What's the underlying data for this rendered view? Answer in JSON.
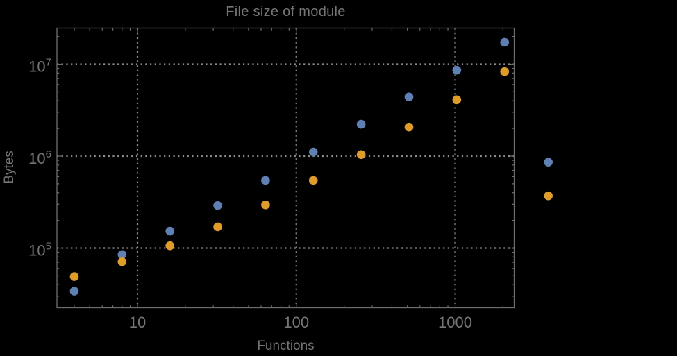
{
  "title": "File size of module",
  "colors": {
    "background": "#000000",
    "frame": "#6e6e6e",
    "grid": "#8c8c8c",
    "text": "#757575",
    "series_blue": "#5E81B5",
    "series_orange": "#E19C24"
  },
  "axes": {
    "x": {
      "label": "Functions",
      "scale": "log",
      "major_ticks": [
        10,
        100,
        1000
      ],
      "major_tick_labels": [
        "10",
        "100",
        "1000"
      ]
    },
    "y": {
      "label": "Bytes",
      "scale": "log",
      "major_ticks": [
        100000,
        1000000,
        10000000
      ],
      "major_tick_labels": [
        {
          "base": "10",
          "exp": "5"
        },
        {
          "base": "10",
          "exp": "6"
        },
        {
          "base": "10",
          "exp": "7"
        }
      ]
    }
  },
  "chart_data": {
    "type": "scatter",
    "title": "File size of module",
    "xlabel": "Functions",
    "ylabel": "Bytes",
    "xscale": "log",
    "yscale": "log",
    "xlim": [
      3.1,
      2355
    ],
    "ylim": [
      22400,
      24700000
    ],
    "grid": "dotted lines at decades, framed plot with inward log ticks",
    "legend": "none",
    "marker_radius_px": 6.3,
    "note_visible_fact": "last pair of points is drawn outside the right edge of the plot frame",
    "series": [
      {
        "name": "series-blue",
        "color": "#5E81B5",
        "x": [
          4,
          8,
          16,
          32,
          64,
          128,
          256,
          512,
          1024,
          2048,
          3860
        ],
        "y": [
          34000,
          85000,
          153000,
          290000,
          545000,
          1110000,
          2220000,
          4400000,
          8600000,
          17300000,
          860000
        ]
      },
      {
        "name": "series-orange",
        "color": "#E19C24",
        "x": [
          4,
          8,
          16,
          32,
          64,
          128,
          256,
          512,
          1024,
          2048,
          3860
        ],
        "y": [
          49000,
          71000,
          106000,
          170000,
          295000,
          545000,
          1040000,
          2070000,
          4100000,
          8300000,
          370000
        ]
      }
    ]
  }
}
